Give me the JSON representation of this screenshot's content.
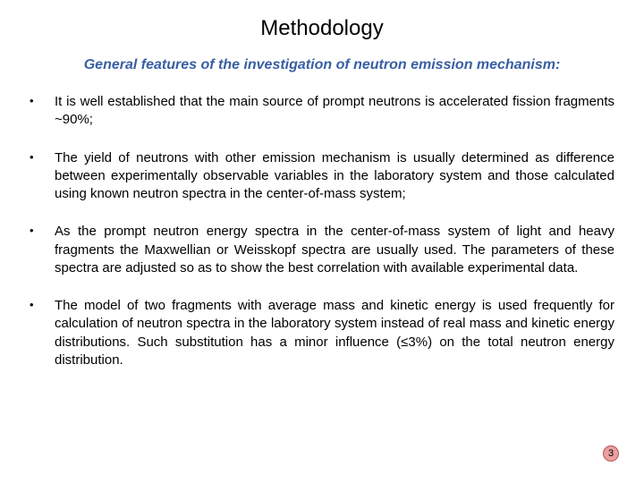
{
  "title": "Methodology",
  "subtitle": "General features of the investigation of neutron emission mechanism:",
  "bullets": [
    "It is well established that the main source of prompt neutrons is accelerated fission fragments ~90%;",
    "The yield of neutrons with other emission mechanism is usually determined as difference between experimentally observable variables in the laboratory system and those calculated using known neutron spectra in the center-of-mass system;",
    "As the prompt neutron energy spectra in the center-of-mass system of light and heavy fragments the Maxwellian or Weisskopf spectra are usually used. The parameters of these spectra are adjusted so as to show the best correlation with available experimental data.",
    "The model of two fragments with average mass and kinetic energy is used frequently for calculation of neutron spectra in the laboratory system instead of real mass and kinetic energy distributions. Such substitution has a minor influence (≤3%) on the total neutron energy distribution."
  ],
  "page_number": "3",
  "colors": {
    "title_color": "#000000",
    "subtitle_color": "#385fa3",
    "text_color": "#000000",
    "background": "#ffffff",
    "badge_bg": "#e8a0a0",
    "badge_border": "#c05050"
  },
  "typography": {
    "title_fontsize": 24,
    "subtitle_fontsize": 16,
    "body_fontsize": 15,
    "font_family": "Arial"
  }
}
